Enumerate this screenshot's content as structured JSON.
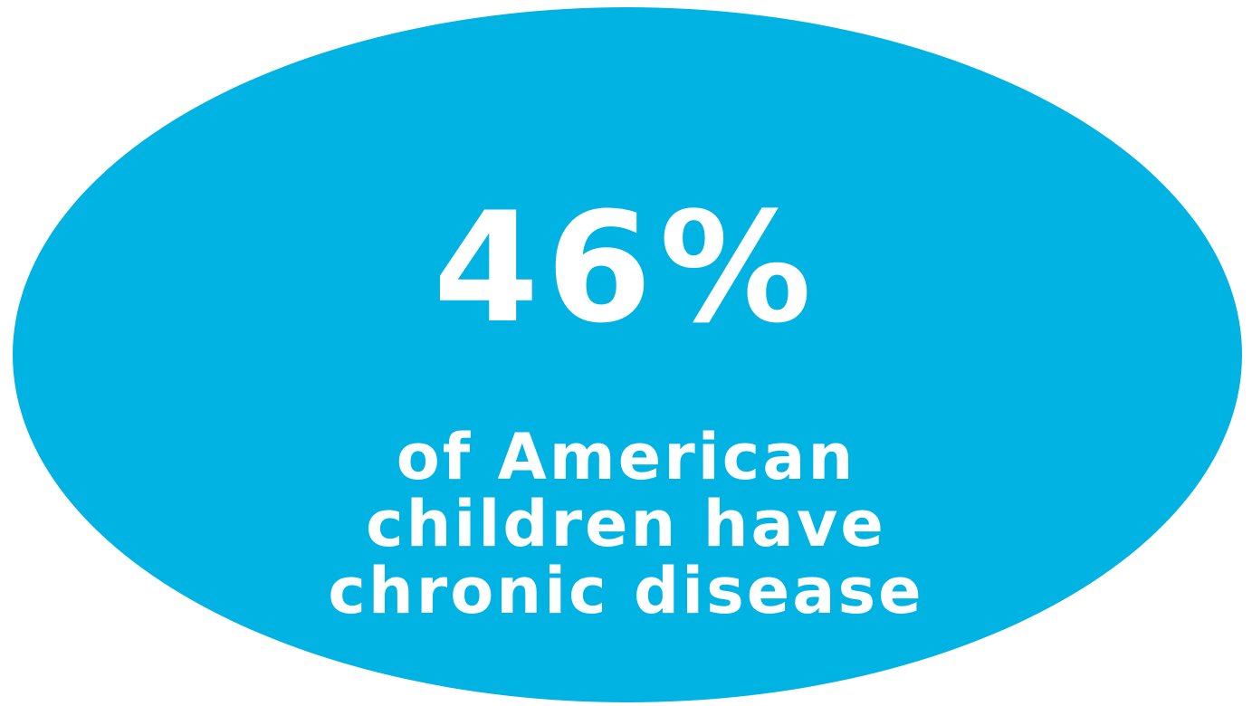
{
  "colors": {
    "circle_fill": "#00b3e3",
    "text": "#ffffff",
    "background": "#ffffff"
  },
  "stat": {
    "value": "46%"
  },
  "caption": {
    "lines": [
      "of American",
      "children have",
      "chronic disease"
    ]
  }
}
